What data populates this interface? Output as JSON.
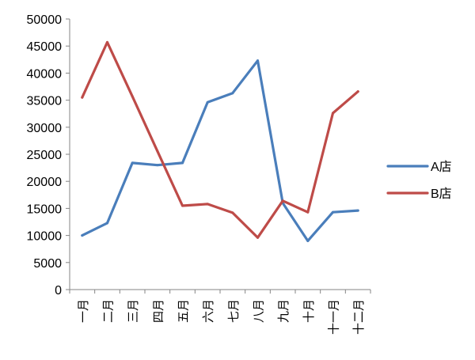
{
  "chart_data": {
    "type": "line",
    "title": "",
    "xlabel": "",
    "ylabel": "",
    "categories": [
      "一月",
      "二月",
      "三月",
      "四月",
      "五月",
      "六月",
      "七月",
      "八月",
      "九月",
      "十月",
      "十一月",
      "十二月"
    ],
    "ylim": [
      0,
      50000
    ],
    "yticks": [
      0,
      5000,
      10000,
      15000,
      20000,
      25000,
      30000,
      35000,
      40000,
      45000,
      50000
    ],
    "grid": false,
    "legend": "right",
    "series": [
      {
        "name": "A店",
        "color": "#4a7ebb",
        "values": [
          10000,
          12300,
          23400,
          23000,
          23400,
          34600,
          36300,
          42300,
          16000,
          9000,
          14300,
          14600
        ]
      },
      {
        "name": "B店",
        "color": "#be4b48",
        "values": [
          35500,
          45700,
          35700,
          25600,
          15500,
          15800,
          14200,
          9600,
          16400,
          14300,
          32600,
          36600
        ]
      }
    ]
  }
}
